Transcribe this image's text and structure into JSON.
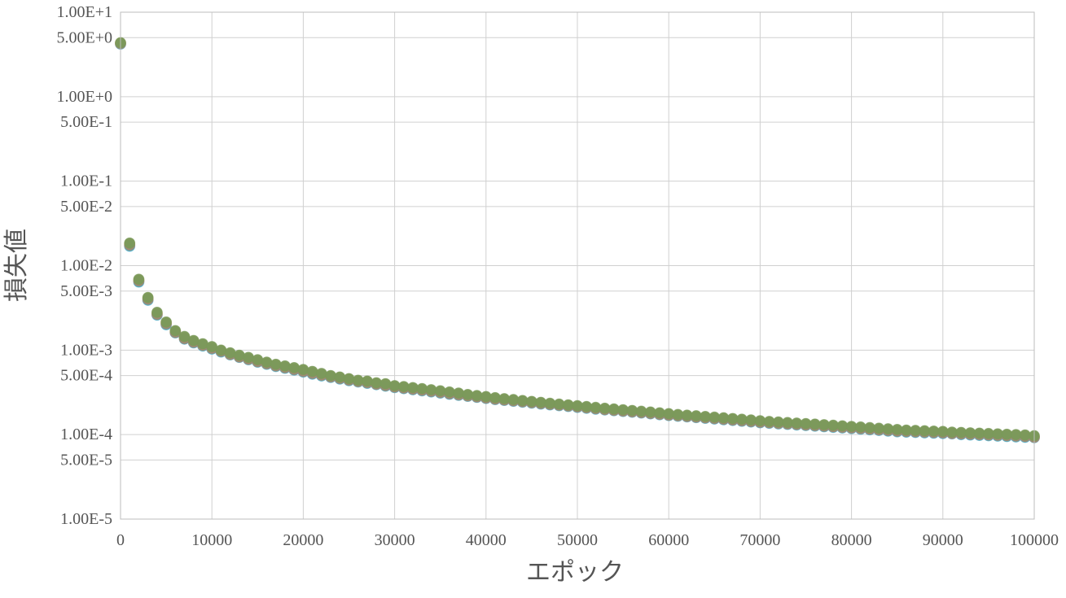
{
  "chart_data": {
    "type": "scatter",
    "title": "",
    "xlabel": "エポック",
    "ylabel": "損失値",
    "x_scale": "linear",
    "y_scale": "log",
    "xlim": [
      0,
      100000
    ],
    "ylim": [
      1e-05,
      10
    ],
    "grid": true,
    "legend": "none",
    "x_ticks": [
      0,
      10000,
      20000,
      30000,
      40000,
      50000,
      60000,
      70000,
      80000,
      90000,
      100000
    ],
    "x_tick_labels": [
      "0",
      "10000",
      "20000",
      "30000",
      "40000",
      "50000",
      "60000",
      "70000",
      "80000",
      "90000",
      "100000"
    ],
    "y_ticks": [
      10,
      5,
      1,
      0.5,
      0.1,
      0.05,
      0.01,
      0.005,
      0.001,
      0.0005,
      0.0001,
      5e-05,
      1e-05
    ],
    "y_tick_labels": [
      "1.00E+1",
      "5.00E+0",
      "1.00E+0",
      "5.00E-1",
      "1.00E-1",
      "5.00E-2",
      "1.00E-2",
      "5.00E-3",
      "1.00E-3",
      "5.00E-4",
      "1.00E-4",
      "5.00E-5",
      "1.00E-5"
    ],
    "x": [
      0,
      1000,
      2000,
      3000,
      4000,
      5000,
      6000,
      7000,
      8000,
      9000,
      10000,
      11000,
      12000,
      13000,
      14000,
      15000,
      16000,
      17000,
      18000,
      19000,
      20000,
      21000,
      22000,
      23000,
      24000,
      25000,
      26000,
      27000,
      28000,
      29000,
      30000,
      31000,
      32000,
      33000,
      34000,
      35000,
      36000,
      37000,
      38000,
      39000,
      40000,
      41000,
      42000,
      43000,
      44000,
      45000,
      46000,
      47000,
      48000,
      49000,
      50000,
      51000,
      52000,
      53000,
      54000,
      55000,
      56000,
      57000,
      58000,
      59000,
      60000,
      61000,
      62000,
      63000,
      64000,
      65000,
      66000,
      67000,
      68000,
      69000,
      70000,
      71000,
      72000,
      73000,
      74000,
      75000,
      76000,
      77000,
      78000,
      79000,
      80000,
      81000,
      82000,
      83000,
      84000,
      85000,
      86000,
      87000,
      88000,
      89000,
      90000,
      91000,
      92000,
      93000,
      94000,
      95000,
      96000,
      97000,
      98000,
      99000,
      100000
    ],
    "series": [
      {
        "color": "#4bacc6",
        "values": [
          4.2,
          0.017,
          0.0064,
          0.0039,
          0.0026,
          0.002,
          0.0016,
          0.00135,
          0.00122,
          0.00112,
          0.00103,
          0.00095,
          0.00088,
          0.00082,
          0.00077,
          0.00072,
          0.00068,
          0.00064,
          0.00061,
          0.00058,
          0.00055,
          0.00052,
          0.000495,
          0.000475,
          0.000455,
          0.000435,
          0.00042,
          0.000405,
          0.00039,
          0.000375,
          0.00036,
          0.00035,
          0.00034,
          0.00033,
          0.00032,
          0.00031,
          0.0003,
          0.000292,
          0.000284,
          0.000276,
          0.000268,
          0.00026,
          0.000254,
          0.000248,
          0.000242,
          0.000236,
          0.00023,
          0.000225,
          0.00022,
          0.000215,
          0.00021,
          0.000205,
          0.0002,
          0.000196,
          0.000192,
          0.000188,
          0.000184,
          0.00018,
          0.000176,
          0.000172,
          0.000168,
          0.000165,
          0.000162,
          0.000159,
          0.000156,
          0.000153,
          0.00015,
          0.000147,
          0.000144,
          0.000141,
          0.000138,
          0.000136,
          0.000134,
          0.000132,
          0.00013,
          0.000128,
          0.000126,
          0.000124,
          0.000122,
          0.00012,
          0.000118,
          0.000116,
          0.000114,
          0.000112,
          0.00011,
          0.000108,
          0.000107,
          0.000106,
          0.000105,
          0.000104,
          0.000103,
          0.000102,
          0.0001,
          9.9e-05,
          9.8e-05,
          9.7e-05,
          9.6e-05,
          9.5e-05,
          9.4e-05,
          9.3e-05,
          9.2e-05
        ]
      },
      {
        "color": "#f79646",
        "values": [
          4.3,
          0.018,
          0.0067,
          0.0041,
          0.0027,
          0.0021,
          0.00165,
          0.0014,
          0.00126,
          0.00115,
          0.00106,
          0.00098,
          0.0009,
          0.00084,
          0.00079,
          0.00074,
          0.0007,
          0.00066,
          0.00063,
          0.0006,
          0.00057,
          0.00054,
          0.00051,
          0.00049,
          0.00047,
          0.00045,
          0.00043,
          0.00042,
          0.0004,
          0.00039,
          0.00037,
          0.00036,
          0.00035,
          0.00034,
          0.00033,
          0.00032,
          0.00031,
          0.0003,
          0.00029,
          0.000283,
          0.000275,
          0.000267,
          0.00026,
          0.000254,
          0.000248,
          0.000242,
          0.000236,
          0.00023,
          0.000225,
          0.00022,
          0.000215,
          0.00021,
          0.000205,
          0.0002,
          0.000196,
          0.000192,
          0.000188,
          0.000184,
          0.00018,
          0.000176,
          0.000172,
          0.000169,
          0.000166,
          0.000163,
          0.00016,
          0.000157,
          0.000154,
          0.000151,
          0.000148,
          0.000145,
          0.000142,
          0.00014,
          0.000137,
          0.000135,
          0.000133,
          0.000131,
          0.000129,
          0.000127,
          0.000125,
          0.000123,
          0.000121,
          0.000119,
          0.000117,
          0.000115,
          0.000113,
          0.000111,
          0.00011,
          0.000109,
          0.000108,
          0.000107,
          0.000106,
          0.000104,
          0.000103,
          0.000102,
          0.000101,
          0.0001,
          9.9e-05,
          9.8e-05,
          9.7e-05,
          9.6e-05,
          9.4e-05
        ]
      },
      {
        "color": "#9b8a76",
        "values": [
          4.25,
          0.0175,
          0.0066,
          0.004,
          0.00265,
          0.00205,
          0.00162,
          0.00137,
          0.00124,
          0.00114,
          0.00105,
          0.00097,
          0.00089,
          0.00083,
          0.00078,
          0.00073,
          0.00069,
          0.00065,
          0.00062,
          0.00059,
          0.00056,
          0.00053,
          0.000505,
          0.000482,
          0.000462,
          0.000442,
          0.000425,
          0.000412,
          0.000395,
          0.00038,
          0.000365,
          0.000355,
          0.000345,
          0.000335,
          0.000325,
          0.000315,
          0.000305,
          0.000296,
          0.000287,
          0.000279,
          0.000271,
          0.000263,
          0.000257,
          0.000251,
          0.000245,
          0.000239,
          0.000233,
          0.000228,
          0.000223,
          0.000218,
          0.000213,
          0.000208,
          0.000203,
          0.000198,
          0.000194,
          0.00019,
          0.000186,
          0.000182,
          0.000178,
          0.000174,
          0.00017,
          0.000167,
          0.000164,
          0.000161,
          0.000158,
          0.000155,
          0.000152,
          0.000149,
          0.000146,
          0.000143,
          0.00014,
          0.000138,
          0.000136,
          0.000134,
          0.000132,
          0.00013,
          0.000128,
          0.000126,
          0.000124,
          0.000122,
          0.00012,
          0.000118,
          0.000116,
          0.000114,
          0.000112,
          0.00011,
          0.000109,
          0.000108,
          0.000107,
          0.000106,
          0.000105,
          0.000103,
          0.000102,
          0.000101,
          0.0001,
          9.9e-05,
          9.8e-05,
          9.7e-05,
          9.6e-05,
          9.5e-05,
          9.3e-05
        ]
      },
      {
        "color": "#7a9a5a",
        "values": [
          4.35,
          0.0185,
          0.0069,
          0.0042,
          0.0028,
          0.00215,
          0.0017,
          0.00145,
          0.0013,
          0.00119,
          0.0011,
          0.001,
          0.00093,
          0.00087,
          0.00082,
          0.00077,
          0.00072,
          0.00068,
          0.00065,
          0.00062,
          0.00059,
          0.00056,
          0.00053,
          0.0005,
          0.00048,
          0.00046,
          0.00044,
          0.00043,
          0.00041,
          0.0004,
          0.00038,
          0.00037,
          0.00036,
          0.00035,
          0.00034,
          0.00033,
          0.00032,
          0.00031,
          0.000298,
          0.00029,
          0.000282,
          0.000274,
          0.000266,
          0.00026,
          0.000253,
          0.000247,
          0.000241,
          0.000235,
          0.00023,
          0.000225,
          0.00022,
          0.000215,
          0.00021,
          0.000205,
          0.000201,
          0.000197,
          0.000193,
          0.000189,
          0.000185,
          0.000181,
          0.000177,
          0.000173,
          0.00017,
          0.000167,
          0.000164,
          0.000161,
          0.000158,
          0.000155,
          0.000152,
          0.000149,
          0.000146,
          0.000143,
          0.000141,
          0.000139,
          0.000137,
          0.000135,
          0.000133,
          0.000131,
          0.000129,
          0.000127,
          0.000125,
          0.000123,
          0.000121,
          0.000119,
          0.000117,
          0.000115,
          0.000113,
          0.000112,
          0.000111,
          0.00011,
          0.000109,
          0.000107,
          0.000106,
          0.000105,
          0.000104,
          0.000103,
          0.000102,
          0.000101,
          0.0001,
          9.9e-05,
          9.7e-05
        ]
      }
    ]
  }
}
